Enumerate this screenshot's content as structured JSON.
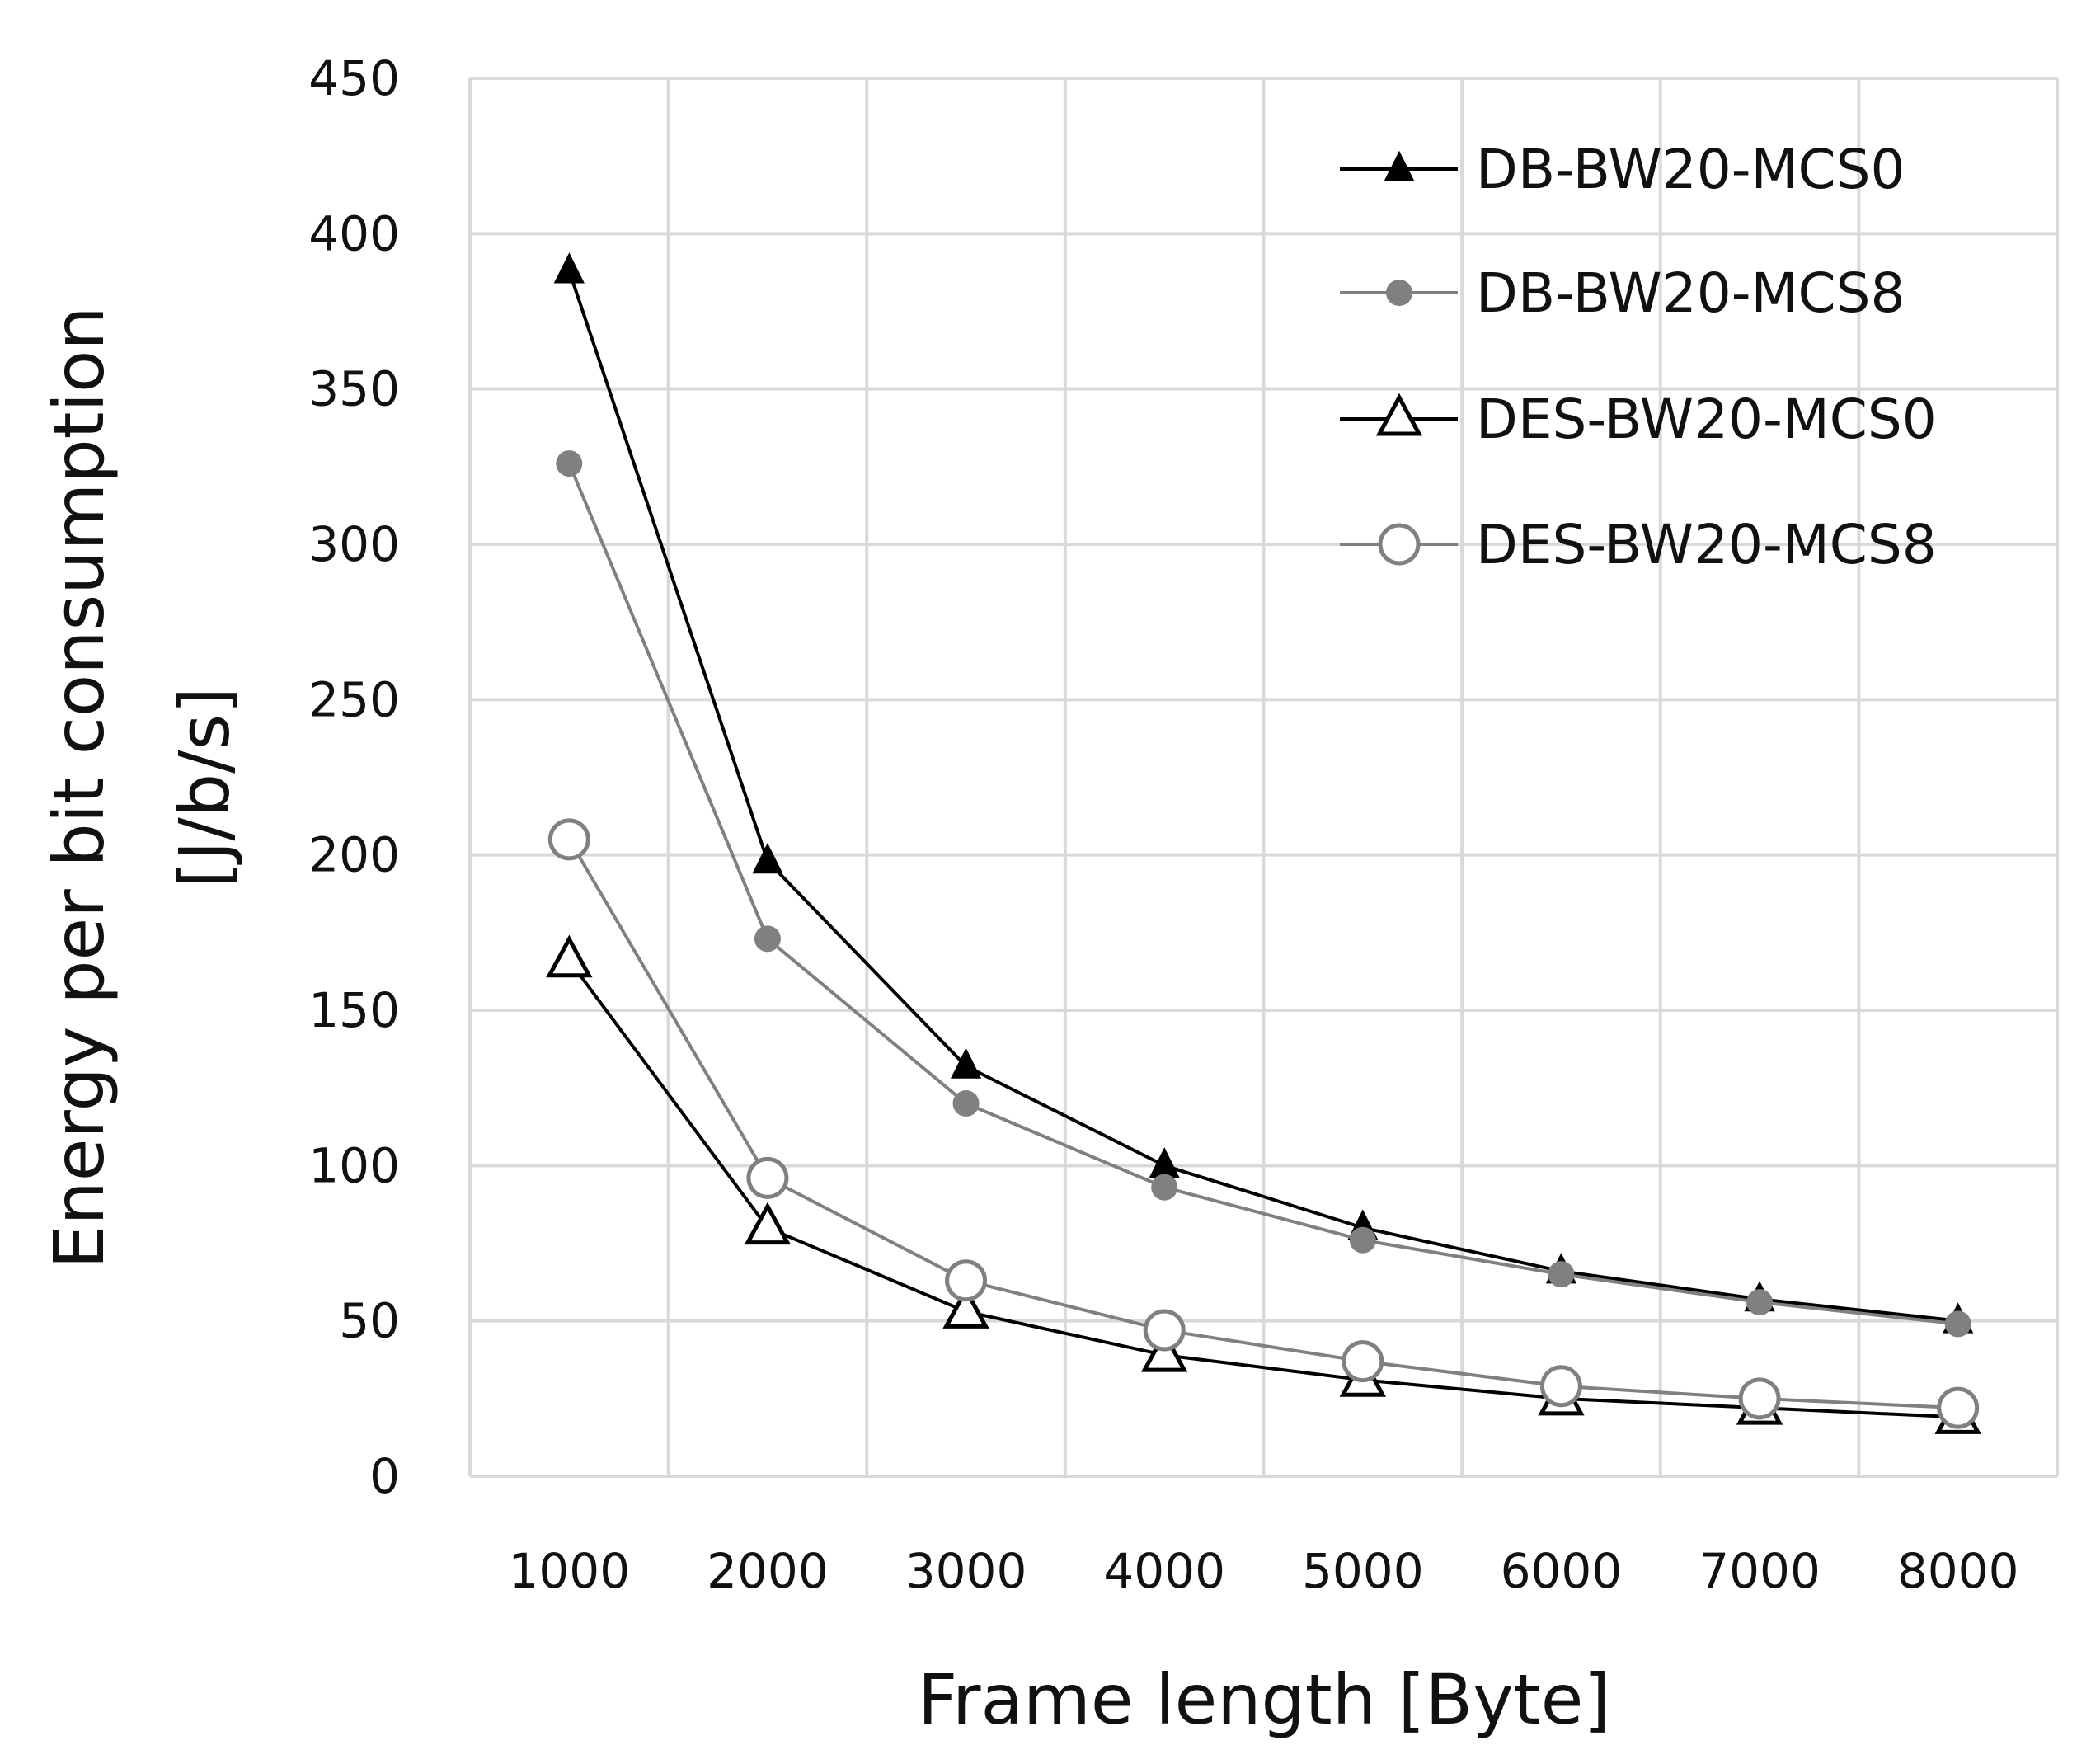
{
  "chart_data": {
    "type": "line",
    "title": "",
    "xlabel": "Frame length [Byte]",
    "ylabel": "Energy per bit consumption [J/b/s]",
    "ylabel_lines": [
      "Energy per bit consumption",
      "[J/b/s]"
    ],
    "categories": [
      "1000",
      "2000",
      "3000",
      "4000",
      "5000",
      "6000",
      "7000",
      "8000"
    ],
    "ylim": [
      0,
      450
    ],
    "yticks": [
      "0",
      "50",
      "100",
      "150",
      "200",
      "250",
      "300",
      "350",
      "400",
      "450"
    ],
    "grid": true,
    "legend_position": "top-right",
    "series": [
      {
        "name": "DB-BW20-MCS0",
        "values": [
          388,
          198,
          132,
          100,
          80,
          66,
          57,
          50
        ],
        "marker": "filled-triangle",
        "color": "#000000"
      },
      {
        "name": "DB-BW20-MCS8",
        "values": [
          326,
          173,
          120,
          93,
          76,
          65,
          56,
          49
        ],
        "marker": "filled-circle",
        "color": "#808080"
      },
      {
        "name": "DES-BW20-MCS0",
        "values": [
          166,
          80,
          53,
          39,
          31,
          25,
          22,
          19
        ],
        "marker": "open-triangle",
        "color": "#000000"
      },
      {
        "name": "DES-BW20-MCS8",
        "values": [
          205,
          96,
          63,
          47,
          37,
          29,
          25,
          22
        ],
        "marker": "open-circle",
        "color": "#808080"
      }
    ]
  }
}
